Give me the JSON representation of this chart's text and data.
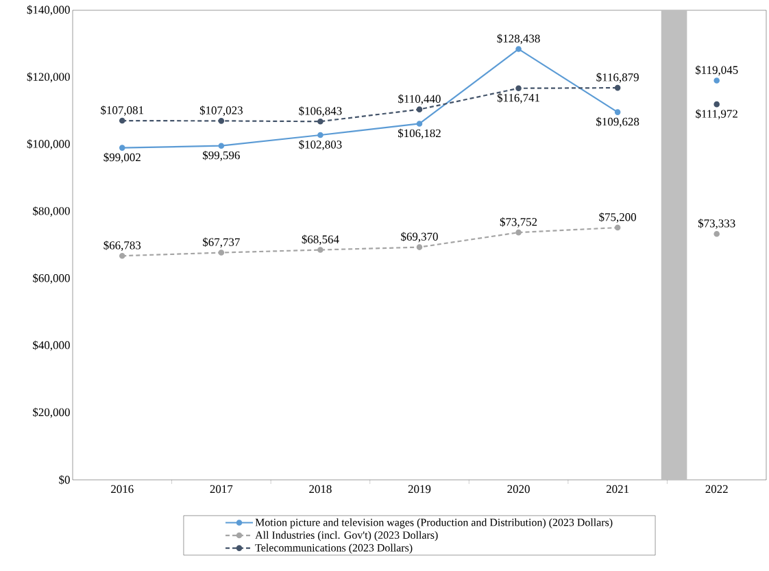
{
  "chart_data": {
    "type": "line",
    "x": [
      2016,
      2017,
      2018,
      2019,
      2020,
      2021,
      2022
    ],
    "xlim": [
      2015.5,
      2022.5
    ],
    "xticks": [
      2016,
      2017,
      2018,
      2019,
      2020,
      2021,
      2022
    ],
    "ylim": [
      0,
      140000
    ],
    "yticks": [
      {
        "value": 0,
        "label": "$0"
      },
      {
        "value": 20000,
        "label": "$20,000"
      },
      {
        "value": 40000,
        "label": "$40,000"
      },
      {
        "value": 60000,
        "label": "$60,000"
      },
      {
        "value": 80000,
        "label": "$80,000"
      },
      {
        "value": 100000,
        "label": "$100,000"
      },
      {
        "value": 120000,
        "label": "$120,000"
      },
      {
        "value": 140000,
        "label": "$140,000"
      }
    ],
    "marker": "circle",
    "legend": "bottom",
    "grid": false,
    "bands": [
      {
        "axis": "x",
        "from": 2021.44,
        "to": 2021.7,
        "color": "#bfbfbf"
      }
    ],
    "series": [
      {
        "name": "Motion picture and television wages (Production and Distribution) (2023 Dollars)",
        "color": "#5b9bd5",
        "line_style": "solid",
        "values": [
          99002,
          99596,
          102803,
          106182,
          128438,
          109628,
          null
        ],
        "value_labels": [
          "$99,002",
          "$99,596",
          "$102,803",
          "$106,182",
          "$128,438",
          "$109,628",
          null
        ]
      },
      {
        "name": "All Industries (incl. Gov't) (2023 Dollars)",
        "color": "#a5a5a5",
        "line_style": "dashed",
        "values": [
          66783,
          67737,
          68564,
          69370,
          73752,
          75200,
          null
        ],
        "value_labels": [
          "$66,783",
          "$67,737",
          "$68,564",
          "$69,370",
          "$73,752",
          "$75,200",
          null
        ]
      },
      {
        "name": "Telecommunications (2023 Dollars)",
        "color": "#44546a",
        "line_style": "dashed",
        "values": [
          107081,
          107023,
          106843,
          110440,
          116741,
          116879,
          null
        ],
        "value_labels": [
          "$107,081",
          "$107,023",
          "$106,843",
          "$110,440",
          "$116,741",
          "$116,879",
          null
        ]
      },
      {
        "type": "scatter",
        "color": "#5b9bd5",
        "values": [
          null,
          null,
          null,
          null,
          null,
          null,
          119045
        ],
        "value_labels": [
          null,
          null,
          null,
          null,
          null,
          null,
          "$119,045"
        ]
      },
      {
        "type": "scatter",
        "color": "#a5a5a5",
        "values": [
          null,
          null,
          null,
          null,
          null,
          null,
          73333
        ],
        "value_labels": [
          null,
          null,
          null,
          null,
          null,
          null,
          "$73,333"
        ]
      },
      {
        "type": "scatter",
        "color": "#44546a",
        "values": [
          null,
          null,
          null,
          null,
          null,
          null,
          111972
        ],
        "value_labels": [
          null,
          null,
          null,
          null,
          null,
          null,
          "$111,972"
        ]
      }
    ]
  }
}
